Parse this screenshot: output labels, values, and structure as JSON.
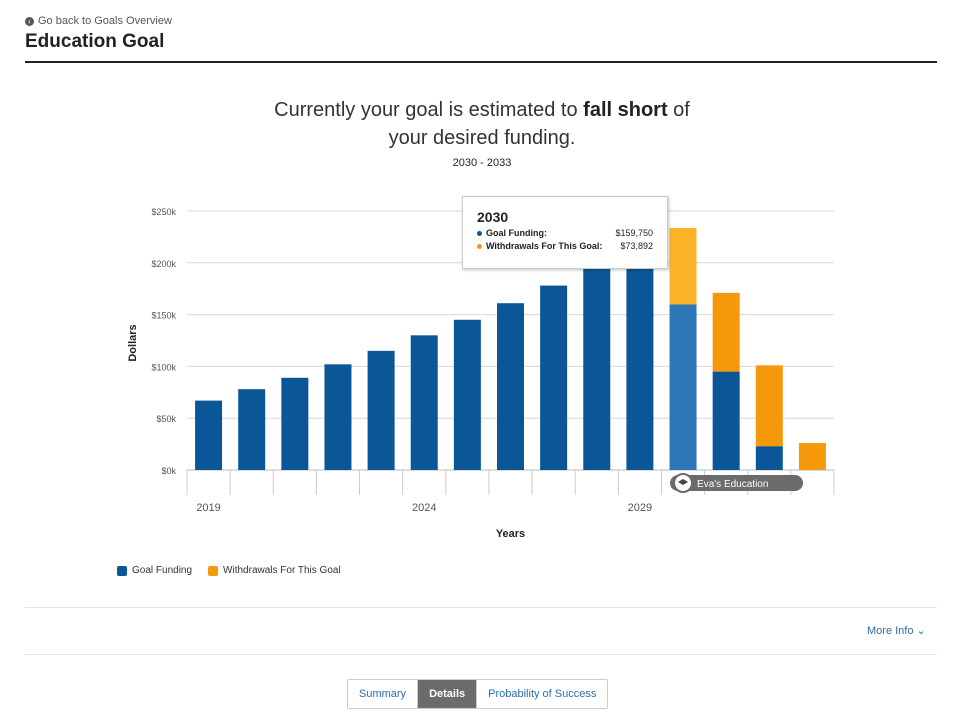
{
  "header": {
    "back_link": "Go back to Goals Overview",
    "title": "Education Goal"
  },
  "summary": {
    "headline_prefix": "Currently your goal is estimated to",
    "headline_bold": "fall short",
    "headline_suffix": "of",
    "headline_line2": "your desired funding.",
    "range": "2030 - 2033"
  },
  "colors": {
    "goal_funding": "#0b5697",
    "goal_funding_highlight": "#2e78b7",
    "withdrawals": "#f5990a",
    "withdrawals_highlight": "#fbb427"
  },
  "chart_data": {
    "type": "bar",
    "stacked": true,
    "xlabel": "Years",
    "ylabel": "Dollars",
    "ylim": [
      0,
      250000
    ],
    "y_ticks": [
      "$0k",
      "$50k",
      "$100k",
      "$150k",
      "$200k",
      "$250k"
    ],
    "x_ticks": [
      "2019",
      "2024",
      "2029"
    ],
    "categories": [
      "2019",
      "2020",
      "2021",
      "2022",
      "2023",
      "2024",
      "2025",
      "2026",
      "2027",
      "2028",
      "2029",
      "2030",
      "2031",
      "2032",
      "2033"
    ],
    "grid": true,
    "legend_position": "bottom-left",
    "series": [
      {
        "name": "Goal Funding",
        "values": [
          67000,
          78000,
          89000,
          102000,
          115000,
          130000,
          145000,
          161000,
          178000,
          196000,
          213000,
          159750,
          95000,
          23000,
          0
        ]
      },
      {
        "name": "Withdrawals For This Goal",
        "values": [
          0,
          0,
          0,
          0,
          0,
          0,
          0,
          0,
          0,
          0,
          0,
          73892,
          76000,
          78000,
          26000
        ]
      }
    ],
    "highlighted_category": "2030",
    "annotation": "Eva's Education"
  },
  "tooltip": {
    "year": "2030",
    "rows": [
      {
        "label": "Goal Funding:",
        "value": "$159,750"
      },
      {
        "label": "Withdrawals For This Goal:",
        "value": "$73,892"
      }
    ]
  },
  "legend": {
    "items": [
      "Goal Funding",
      "Withdrawals For This Goal"
    ]
  },
  "more_info": {
    "label": "More Info"
  },
  "tabs": [
    {
      "label": "Summary",
      "active": false
    },
    {
      "label": "Details",
      "active": true
    },
    {
      "label": "Probability of Success",
      "active": false
    }
  ]
}
